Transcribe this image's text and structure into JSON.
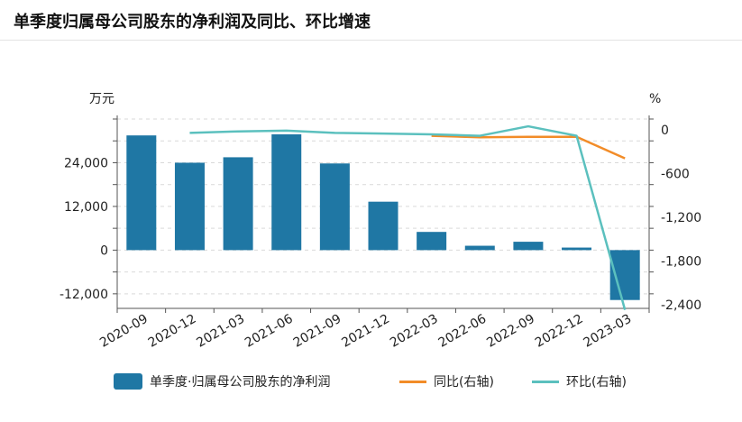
{
  "title": "单季度归属母公司股东的净利润及同比、环比增速",
  "chart_data": {
    "type": "bar",
    "categories": [
      "2020-09",
      "2020-12",
      "2021-03",
      "2021-06",
      "2021-09",
      "2021-12",
      "2022-03",
      "2022-06",
      "2022-09",
      "2022-12",
      "2023-03"
    ],
    "left_axis": {
      "unit": "万元",
      "ylim": [
        -16000,
        36000
      ],
      "ticks": [
        -12000,
        0,
        12000,
        24000
      ],
      "tick_labels": [
        "-12,000",
        "0",
        "12,000",
        "24,000"
      ]
    },
    "right_axis": {
      "unit": "%",
      "ylim": [
        -2450,
        150
      ],
      "ticks": [
        -2400,
        -1800,
        -1200,
        -600,
        0
      ],
      "tick_labels": [
        "-2,400",
        "-1,800",
        "-1,200",
        "-600",
        "0"
      ]
    },
    "series": [
      {
        "name": "单季度·归属母公司股东的净利润",
        "kind": "bar",
        "axis": "left",
        "color": "#1f77a4",
        "values": [
          31500,
          24000,
          25500,
          31800,
          23800,
          13300,
          5000,
          1200,
          2300,
          700,
          -13700
        ]
      },
      {
        "name": "同比(右轴)",
        "kind": "line",
        "axis": "right",
        "color": "#f28c28",
        "values": [
          null,
          null,
          null,
          null,
          null,
          null,
          -80,
          -100,
          -95,
          -95,
          -390
        ]
      },
      {
        "name": "环比(右轴)",
        "kind": "line",
        "axis": "right",
        "color": "#5bc0be",
        "values": [
          null,
          -40,
          -20,
          -10,
          -40,
          -50,
          -60,
          -80,
          50,
          -80,
          -2470
        ]
      }
    ],
    "grid": "horizontal dashed",
    "legend_position": "bottom"
  }
}
